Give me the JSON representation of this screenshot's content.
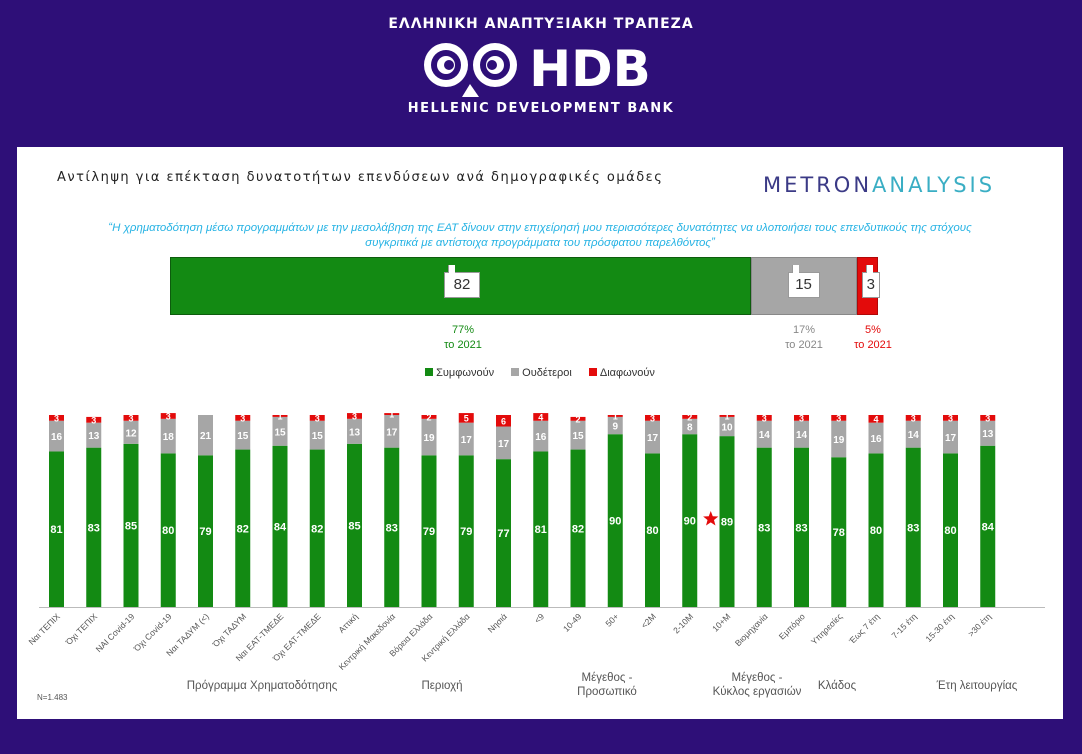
{
  "header": {
    "brand_top": "ΕΛΛΗΝΙΚΗ ΑΝΑΠΤΥΞΙΑΚΗ ΤΡΑΠΕΖΑ",
    "logo_text": "HDB",
    "brand_bottom": "HELLENIC DEVELOPMENT BANK"
  },
  "card": {
    "title": "Αντίληψη για επέκταση δυνατοτήτων επενδύσεων ανά δημογραφικές ομάδες",
    "metron_part1": "METRON",
    "metron_part2": "ANALYSIS",
    "quote_line1": "“Η χρηματοδότηση μέσω προγραμμάτων με την μεσολάβηση της ΕΑΤ δίνουν στην επιχείρησή μου περισσότερες δυνατότητες να υλοποιήσει τους επενδυτικούς της στόχους",
    "quote_line2": "συγκριτικά με αντίστοιχα προγράμματα του πρόσφατου παρελθόντος”",
    "sample_size": "N=1.483"
  },
  "summary": {
    "agree": 82,
    "neutral": 15,
    "disagree": 3,
    "prev_agree_pct": "77%",
    "prev_agree_year": "το 2021",
    "prev_neutral_pct": "17%",
    "prev_neutral_year": "το 2021",
    "prev_disagree_pct": "5%",
    "prev_disagree_year": "το 2021"
  },
  "legend": {
    "agree": "Συμφωνούν",
    "neutral": "Ουδέτεροι",
    "disagree": "Διαφωνούν"
  },
  "groups": [
    {
      "label": "Πρόγραμμα Χρηματοδότησης"
    },
    {
      "label": "Περιοχή"
    },
    {
      "label": "Μέγεθος -\nΠροσωπικό"
    },
    {
      "label": "Μέγεθος -\nΚύκλος εργασιών"
    },
    {
      "label": "Κλάδος"
    },
    {
      "label": "Έτη λειτουργίας"
    }
  ],
  "colors": {
    "agree": "#138a13",
    "neutral": "#a6a6a6",
    "disagree": "#e30b0b",
    "background": "#2e0f78",
    "quote": "#27b3e4",
    "star": "#e30b0b"
  },
  "chart_data": {
    "type": "bar",
    "stacked": true,
    "categories": [
      "Ναι ΤΕΠΙΧ",
      "Όχι ΤΕΠΙΧ",
      "ΝΑΙ Covid-19",
      "Όχι Covid-19",
      "Ναι ΤΑΔΥΜ (<)",
      "Όχι ΤΑΔΥΜ",
      "Ναι ΕΑΤ-ΤΜΕΔΕ",
      "Όχι ΕΑΤ-ΤΜΕΔΕ",
      "Αττική",
      "Κεντρική Μακεδονία",
      "Βόρεια Ελλάδα",
      "Κεντρική Ελλάδα",
      "Νησιά",
      "<9",
      "10-49",
      "50+",
      "<2M",
      "2-10M",
      "10+M",
      "Βιομηχανία",
      "Εμπόριο",
      "Υπηρεσίες",
      "Έως 7 έτη",
      "7-15 έτη",
      "15-30 έτη",
      ">30 έτη"
    ],
    "series": [
      {
        "name": "Συμφωνούν",
        "values": [
          81,
          83,
          85,
          80,
          79,
          82,
          84,
          82,
          85,
          83,
          79,
          79,
          77,
          81,
          82,
          90,
          80,
          90,
          89,
          83,
          83,
          78,
          80,
          83,
          80,
          84
        ]
      },
      {
        "name": "Ουδέτεροι",
        "values": [
          16,
          13,
          12,
          18,
          21,
          15,
          15,
          15,
          13,
          17,
          19,
          17,
          17,
          16,
          15,
          9,
          17,
          8,
          10,
          14,
          14,
          19,
          16,
          14,
          17,
          13
        ]
      },
      {
        "name": "Διαφωνούν",
        "values": [
          3,
          3,
          3,
          3,
          0,
          3,
          1,
          3,
          3,
          1,
          2,
          5,
          6,
          4,
          2,
          1,
          3,
          2,
          1,
          3,
          3,
          3,
          4,
          3,
          3,
          3
        ]
      }
    ],
    "ylim": [
      0,
      100
    ],
    "star_category": "2-10M",
    "legend_position": "top"
  }
}
